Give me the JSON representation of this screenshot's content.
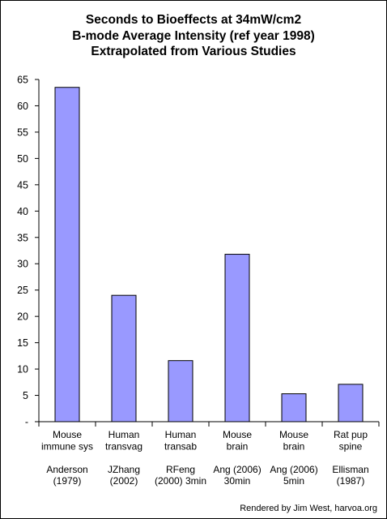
{
  "chart_data": {
    "type": "bar",
    "title": [
      "Seconds to Bioeffects at 34mW/cm2",
      "B-mode Average Intensity (ref year 1998)",
      "Extrapolated from Various Studies"
    ],
    "categories": [
      [
        "Mouse",
        "immune sys",
        "",
        "Anderson",
        "(1979)"
      ],
      [
        "Human",
        "transvag",
        "",
        "JZhang",
        "(2002)"
      ],
      [
        "Human",
        "transab",
        "",
        "RFeng",
        "(2000) 3min"
      ],
      [
        "Mouse",
        "brain",
        "",
        "Ang (2006)",
        "30min"
      ],
      [
        "Mouse",
        "brain",
        "",
        "Ang (2006)",
        "5min"
      ],
      [
        "Rat pup",
        "spine",
        "",
        "Ellisman",
        "(1987)"
      ]
    ],
    "values": [
      63.5,
      24,
      11.6,
      31.8,
      5.3,
      7.1
    ],
    "ylim": [
      0,
      65
    ],
    "ytick_step": 5,
    "ytick_labels": [
      "-",
      "5",
      "10",
      "15",
      "20",
      "25",
      "30",
      "35",
      "40",
      "45",
      "50",
      "55",
      "60",
      "65"
    ],
    "xlabel": "",
    "ylabel": "",
    "grid": false,
    "legend": "none",
    "bar_color": "#9999FF",
    "bar_edge_color": "#000000"
  },
  "footer": {
    "credit": "Rendered by Jim West, harvoa.org"
  }
}
